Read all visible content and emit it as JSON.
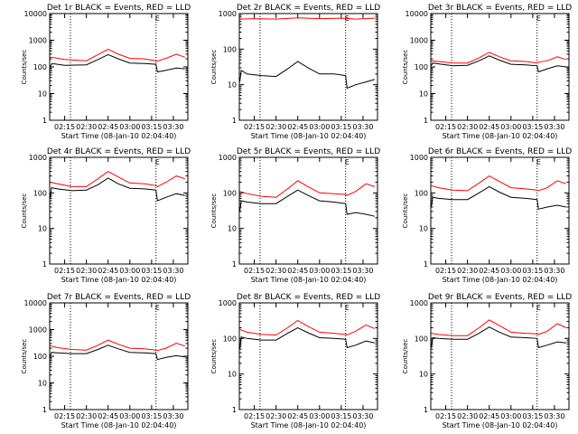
{
  "figure": {
    "background": "#ffffff"
  },
  "colors": {
    "events": "#000000",
    "lld": "#ff0000",
    "axes": "#000000"
  },
  "chart_data": [
    {
      "type": "line",
      "title": "Det 1r BLACK = Events, RED = LLD",
      "marker_label": "E",
      "xlabel": "Start Time (08-Jan-10 02:04:40)",
      "ylabel": "Counts/sec",
      "y_scale": "log",
      "ylim": [
        1,
        10000
      ],
      "y_ticks": [
        "1",
        "10",
        "100",
        "1000",
        "10000"
      ],
      "x_ticks": [
        "02:15",
        "02:30",
        "02:45",
        "03:00",
        "03:15",
        "03:30"
      ],
      "xlim": [
        "02:04:40",
        "03:40:00"
      ],
      "dotted_markers": [
        "02:19",
        "03:18"
      ],
      "series": [
        {
          "x": [
            "02:05",
            "02:06",
            "02:08",
            "02:15",
            "02:30",
            "02:38",
            "02:45",
            "02:52",
            "03:00",
            "03:10",
            "03:18",
            "03:19",
            "03:25",
            "03:32",
            "03:38"
          ],
          "values": [
            100,
            130,
            130,
            115,
            120,
            190,
            290,
            200,
            140,
            135,
            125,
            65,
            75,
            90,
            85
          ]
        },
        {
          "x": [
            "02:05",
            "02:08",
            "02:15",
            "02:30",
            "02:38",
            "02:45",
            "02:52",
            "03:00",
            "03:10",
            "03:18",
            "03:19",
            "03:25",
            "03:32",
            "03:38"
          ],
          "values": [
            230,
            220,
            190,
            170,
            290,
            460,
            300,
            210,
            200,
            170,
            165,
            210,
            300,
            230
          ]
        }
      ]
    },
    {
      "type": "line",
      "title": "Det 2r BLACK = Events, RED = LLD",
      "marker_label": "E",
      "xlabel": "Start Time (08-Jan-10 02:04:40)",
      "ylabel": "Counts/sec",
      "y_scale": "log",
      "ylim": [
        1,
        1000
      ],
      "y_ticks": [
        "1",
        "10",
        "100",
        "1000"
      ],
      "x_ticks": [
        "02:15",
        "02:30",
        "02:45",
        "03:00",
        "03:15",
        "03:30"
      ],
      "xlim": [
        "02:04:40",
        "03:40:00"
      ],
      "dotted_markers": [
        "02:19",
        "03:18"
      ],
      "series": [
        {
          "x": [
            "02:05",
            "02:06",
            "02:10",
            "02:20",
            "02:30",
            "02:38",
            "02:45",
            "02:52",
            "03:00",
            "03:10",
            "03:18",
            "03:19",
            "03:25",
            "03:32",
            "03:38"
          ],
          "values": [
            12,
            25,
            20,
            18,
            17,
            28,
            45,
            30,
            20,
            20,
            18,
            8,
            10,
            12,
            14
          ]
        },
        {
          "x": [
            "02:05",
            "02:15",
            "02:30",
            "02:45",
            "03:00",
            "03:15",
            "03:25",
            "03:38"
          ],
          "values": [
            700,
            720,
            700,
            760,
            720,
            740,
            700,
            740
          ]
        }
      ]
    },
    {
      "type": "line",
      "title": "Det 3r BLACK = Events, RED = LLD",
      "marker_label": "E",
      "xlabel": "Start Time (08-Jan-10 02:04:40)",
      "ylabel": "Counts/sec",
      "y_scale": "log",
      "ylim": [
        1,
        10000
      ],
      "y_ticks": [
        "1",
        "10",
        "100",
        "1000",
        "10000"
      ],
      "x_ticks": [
        "02:15",
        "02:30",
        "02:45",
        "03:00",
        "03:15",
        "03:30"
      ],
      "xlim": [
        "02:04:40",
        "03:40:00"
      ],
      "dotted_markers": [
        "02:19",
        "03:18"
      ],
      "series": [
        {
          "x": [
            "02:05",
            "02:06",
            "02:10",
            "02:20",
            "02:30",
            "02:38",
            "02:45",
            "02:52",
            "03:00",
            "03:10",
            "03:18",
            "03:19",
            "03:25",
            "03:32",
            "03:38"
          ],
          "values": [
            110,
            140,
            130,
            110,
            115,
            170,
            260,
            180,
            125,
            120,
            110,
            65,
            85,
            110,
            100
          ]
        },
        {
          "x": [
            "02:05",
            "02:10",
            "02:20",
            "02:30",
            "02:38",
            "02:45",
            "02:52",
            "03:00",
            "03:10",
            "03:18",
            "03:19",
            "03:25",
            "03:32",
            "03:38"
          ],
          "values": [
            170,
            160,
            140,
            140,
            220,
            350,
            240,
            170,
            160,
            140,
            150,
            170,
            240,
            190
          ]
        }
      ]
    },
    {
      "type": "line",
      "title": "Det 4r BLACK = Events, RED = LLD",
      "marker_label": "E",
      "xlabel": "Start Time (08-Jan-10 02:04:40)",
      "ylabel": "Counts/sec",
      "y_scale": "log",
      "ylim": [
        1,
        1000
      ],
      "y_ticks": [
        "1",
        "10",
        "100",
        "1000"
      ],
      "x_ticks": [
        "02:15",
        "02:30",
        "02:45",
        "03:00",
        "03:15",
        "03:30"
      ],
      "xlim": [
        "02:04:40",
        "03:40:00"
      ],
      "dotted_markers": [
        "02:19",
        "03:18"
      ],
      "series": [
        {
          "x": [
            "02:05",
            "02:06",
            "02:10",
            "02:20",
            "02:30",
            "02:38",
            "02:45",
            "02:52",
            "03:00",
            "03:10",
            "03:18",
            "03:19",
            "03:25",
            "03:32",
            "03:38"
          ],
          "values": [
            70,
            140,
            130,
            115,
            120,
            170,
            260,
            180,
            135,
            130,
            120,
            60,
            75,
            95,
            85
          ]
        },
        {
          "x": [
            "02:05",
            "02:10",
            "02:20",
            "02:30",
            "02:38",
            "02:45",
            "02:52",
            "03:00",
            "03:10",
            "03:18",
            "03:19",
            "03:25",
            "03:32",
            "03:38"
          ],
          "values": [
            200,
            180,
            150,
            150,
            250,
            400,
            280,
            190,
            180,
            160,
            150,
            200,
            300,
            250
          ]
        }
      ]
    },
    {
      "type": "line",
      "title": "Det 5r BLACK = Events, RED = LLD",
      "marker_label": "E",
      "xlabel": "Start Time (08-Jan-10 02:04:40)",
      "ylabel": "Counts/sec",
      "y_scale": "log",
      "ylim": [
        1,
        1000
      ],
      "y_ticks": [
        "1",
        "10",
        "100",
        "1000"
      ],
      "x_ticks": [
        "02:15",
        "02:30",
        "02:45",
        "03:00",
        "03:15",
        "03:30"
      ],
      "xlim": [
        "02:04:40",
        "03:40:00"
      ],
      "dotted_markers": [
        "02:19",
        "03:18"
      ],
      "series": [
        {
          "x": [
            "02:05",
            "02:06",
            "02:10",
            "02:20",
            "02:30",
            "02:38",
            "02:45",
            "02:52",
            "03:00",
            "03:10",
            "03:18",
            "03:19",
            "03:25",
            "03:32",
            "03:38"
          ],
          "values": [
            30,
            60,
            55,
            50,
            50,
            80,
            120,
            85,
            60,
            55,
            50,
            25,
            28,
            25,
            22
          ]
        },
        {
          "x": [
            "02:05",
            "02:10",
            "02:20",
            "02:30",
            "02:38",
            "02:45",
            "02:52",
            "03:00",
            "03:10",
            "03:18",
            "03:19",
            "03:25",
            "03:32",
            "03:38"
          ],
          "values": [
            110,
            95,
            80,
            75,
            130,
            220,
            150,
            100,
            95,
            90,
            85,
            110,
            180,
            150
          ]
        }
      ]
    },
    {
      "type": "line",
      "title": "Det 6r BLACK = Events, RED = LLD",
      "marker_label": "E",
      "xlabel": "Start Time (08-Jan-10 02:04:40)",
      "ylabel": "Counts/sec",
      "y_scale": "log",
      "ylim": [
        1,
        1000
      ],
      "y_ticks": [
        "1",
        "10",
        "100",
        "1000"
      ],
      "x_ticks": [
        "02:15",
        "02:30",
        "02:45",
        "03:00",
        "03:15",
        "03:30"
      ],
      "xlim": [
        "02:04:40",
        "03:40:00"
      ],
      "dotted_markers": [
        "02:19",
        "03:18"
      ],
      "series": [
        {
          "x": [
            "02:05",
            "02:06",
            "02:10",
            "02:20",
            "02:30",
            "02:38",
            "02:45",
            "02:52",
            "03:00",
            "03:10",
            "03:18",
            "03:19",
            "03:25",
            "03:32",
            "03:38"
          ],
          "values": [
            40,
            75,
            70,
            65,
            65,
            100,
            150,
            105,
            75,
            70,
            65,
            35,
            40,
            45,
            40
          ]
        },
        {
          "x": [
            "02:05",
            "02:10",
            "02:20",
            "02:30",
            "02:38",
            "02:45",
            "02:52",
            "03:00",
            "03:10",
            "03:18",
            "03:19",
            "03:25",
            "03:32",
            "03:38"
          ],
          "values": [
            160,
            140,
            120,
            115,
            190,
            300,
            210,
            140,
            130,
            120,
            115,
            140,
            220,
            180
          ]
        }
      ]
    },
    {
      "type": "line",
      "title": "Det 7r BLACK = Events, RED = LLD",
      "marker_label": "E",
      "xlabel": "Start Time (08-Jan-10 02:04:40)",
      "ylabel": "Counts/sec",
      "y_scale": "log",
      "ylim": [
        1,
        10000
      ],
      "y_ticks": [
        "1",
        "10",
        "100",
        "1000",
        "10000"
      ],
      "x_ticks": [
        "02:15",
        "02:30",
        "02:45",
        "03:00",
        "03:15",
        "03:30"
      ],
      "xlim": [
        "02:04:40",
        "03:40:00"
      ],
      "dotted_markers": [
        "02:19",
        "03:18"
      ],
      "series": [
        {
          "x": [
            "02:05",
            "02:06",
            "02:10",
            "02:20",
            "02:30",
            "02:38",
            "02:45",
            "02:52",
            "03:00",
            "03:10",
            "03:18",
            "03:19",
            "03:25",
            "03:32",
            "03:38"
          ],
          "values": [
            100,
            140,
            135,
            125,
            125,
            180,
            260,
            190,
            140,
            135,
            125,
            75,
            90,
            105,
            95
          ]
        },
        {
          "x": [
            "02:05",
            "02:10",
            "02:20",
            "02:30",
            "02:38",
            "02:45",
            "02:52",
            "03:00",
            "03:10",
            "03:18",
            "03:19",
            "03:25",
            "03:32",
            "03:38"
          ],
          "values": [
            250,
            210,
            180,
            170,
            260,
            400,
            280,
            200,
            190,
            170,
            165,
            200,
            310,
            240
          ]
        }
      ]
    },
    {
      "type": "line",
      "title": "Det 8r BLACK = Events, RED = LLD",
      "marker_label": "E",
      "xlabel": "Start Time (08-Jan-10 02:04:40)",
      "ylabel": "Counts/sec",
      "y_scale": "log",
      "ylim": [
        1,
        1000
      ],
      "y_ticks": [
        "1",
        "10",
        "100",
        "1000"
      ],
      "x_ticks": [
        "02:15",
        "02:30",
        "02:45",
        "03:00",
        "03:15",
        "03:30"
      ],
      "xlim": [
        "02:04:40",
        "03:40:00"
      ],
      "dotted_markers": [
        "02:19",
        "03:18"
      ],
      "series": [
        {
          "x": [
            "02:05",
            "02:06",
            "02:10",
            "02:20",
            "02:30",
            "02:38",
            "02:45",
            "02:52",
            "03:00",
            "03:10",
            "03:18",
            "03:19",
            "03:25",
            "03:32",
            "03:38"
          ],
          "values": [
            50,
            110,
            100,
            90,
            90,
            140,
            200,
            145,
            105,
            100,
            95,
            55,
            65,
            85,
            75
          ]
        },
        {
          "x": [
            "02:05",
            "02:10",
            "02:20",
            "02:30",
            "02:38",
            "02:45",
            "02:52",
            "03:00",
            "03:10",
            "03:18",
            "03:19",
            "03:25",
            "03:32",
            "03:38"
          ],
          "values": [
            180,
            150,
            130,
            125,
            200,
            320,
            220,
            150,
            140,
            130,
            125,
            160,
            240,
            190
          ]
        }
      ]
    },
    {
      "type": "line",
      "title": "Det 9r BLACK = Events, RED = LLD",
      "marker_label": "E",
      "xlabel": "Start Time (08-Jan-10 02:04:40)",
      "ylabel": "Counts/sec",
      "y_scale": "log",
      "ylim": [
        1,
        1000
      ],
      "y_ticks": [
        "1",
        "10",
        "100",
        "1000"
      ],
      "x_ticks": [
        "02:15",
        "02:30",
        "02:45",
        "03:00",
        "03:15",
        "03:30"
      ],
      "xlim": [
        "02:04:40",
        "03:40:00"
      ],
      "dotted_markers": [
        "02:19",
        "03:18"
      ],
      "series": [
        {
          "x": [
            "02:05",
            "02:06",
            "02:10",
            "02:20",
            "02:30",
            "02:38",
            "02:45",
            "02:52",
            "03:00",
            "03:10",
            "03:18",
            "03:19",
            "03:25",
            "03:32",
            "03:38"
          ],
          "values": [
            55,
            105,
            100,
            95,
            95,
            140,
            210,
            150,
            110,
            105,
            100,
            55,
            65,
            80,
            75
          ]
        },
        {
          "x": [
            "02:05",
            "02:10",
            "02:20",
            "02:30",
            "02:38",
            "02:45",
            "02:52",
            "03:00",
            "03:10",
            "03:18",
            "03:19",
            "03:25",
            "03:32",
            "03:38"
          ],
          "values": [
            140,
            130,
            120,
            120,
            200,
            330,
            230,
            150,
            140,
            135,
            130,
            160,
            260,
            200
          ]
        }
      ]
    }
  ]
}
